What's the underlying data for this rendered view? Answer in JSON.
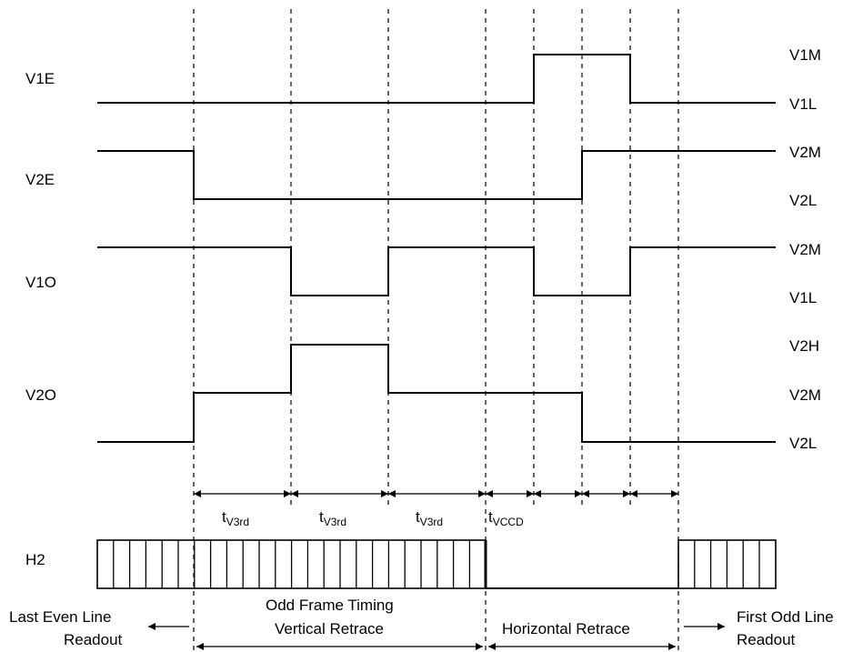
{
  "signals": [
    {
      "id": "v1e",
      "name": "V1E",
      "levels": [
        "V1M",
        "V1L"
      ]
    },
    {
      "id": "v2e",
      "name": "V2E",
      "levels": [
        "V2M",
        "V2L"
      ]
    },
    {
      "id": "v1o",
      "name": "V1O",
      "levels": [
        "V2M",
        "V1L"
      ]
    },
    {
      "id": "v2o",
      "name": "V2O",
      "levels": [
        "V2H",
        "V2M",
        "V2L"
      ]
    }
  ],
  "h_clock": {
    "name": "H2"
  },
  "intervals": [
    {
      "main": "t",
      "sub": "V3rd"
    },
    {
      "main": "t",
      "sub": "V3rd"
    },
    {
      "main": "t",
      "sub": "V3rd"
    },
    {
      "main": "t",
      "sub": "VCCD"
    }
  ],
  "bottom": {
    "left_line1": "Last Even Line",
    "left_line2": "Readout",
    "mid_line1": "Odd Frame Timing",
    "mid_line2": "Vertical Retrace",
    "horizontal": "Horizontal Retrace",
    "right_line1": "First Odd Line",
    "right_line2": "Readout"
  }
}
